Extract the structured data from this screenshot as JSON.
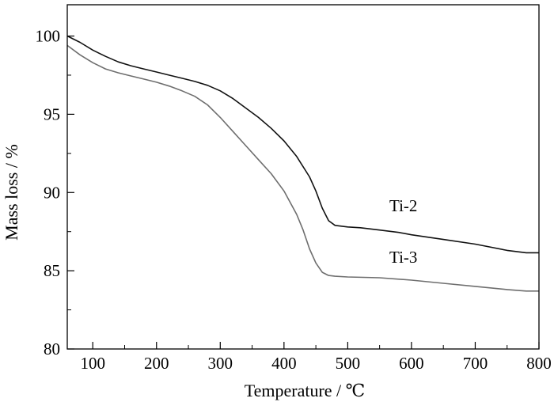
{
  "chart_data": {
    "type": "line",
    "title": "",
    "xlabel": "Temperature / ℃",
    "ylabel": "Mass loss / %",
    "xlim": [
      60,
      800
    ],
    "ylim": [
      80,
      102
    ],
    "x_ticks": [
      100,
      200,
      300,
      400,
      500,
      600,
      700,
      800
    ],
    "y_ticks": [
      80,
      85,
      90,
      95,
      100
    ],
    "grid": false,
    "legend": "inline labels",
    "series": [
      {
        "name": "Ti-2",
        "color": "#111111",
        "points": [
          [
            60,
            100.0
          ],
          [
            80,
            99.6
          ],
          [
            100,
            99.1
          ],
          [
            120,
            98.7
          ],
          [
            140,
            98.35
          ],
          [
            160,
            98.1
          ],
          [
            180,
            97.9
          ],
          [
            200,
            97.7
          ],
          [
            220,
            97.5
          ],
          [
            240,
            97.3
          ],
          [
            260,
            97.1
          ],
          [
            280,
            96.85
          ],
          [
            300,
            96.5
          ],
          [
            320,
            96.0
          ],
          [
            340,
            95.4
          ],
          [
            360,
            94.8
          ],
          [
            380,
            94.1
          ],
          [
            400,
            93.3
          ],
          [
            420,
            92.3
          ],
          [
            440,
            91.0
          ],
          [
            450,
            90.1
          ],
          [
            460,
            89.0
          ],
          [
            470,
            88.2
          ],
          [
            480,
            87.9
          ],
          [
            500,
            87.8
          ],
          [
            520,
            87.75
          ],
          [
            550,
            87.6
          ],
          [
            580,
            87.45
          ],
          [
            600,
            87.3
          ],
          [
            650,
            87.0
          ],
          [
            700,
            86.7
          ],
          [
            750,
            86.3
          ],
          [
            780,
            86.15
          ],
          [
            800,
            86.15
          ]
        ]
      },
      {
        "name": "Ti-3",
        "color": "#6e6e6e",
        "points": [
          [
            60,
            99.4
          ],
          [
            80,
            98.8
          ],
          [
            100,
            98.3
          ],
          [
            120,
            97.9
          ],
          [
            140,
            97.65
          ],
          [
            160,
            97.45
          ],
          [
            180,
            97.25
          ],
          [
            200,
            97.05
          ],
          [
            220,
            96.8
          ],
          [
            240,
            96.5
          ],
          [
            260,
            96.15
          ],
          [
            280,
            95.6
          ],
          [
            300,
            94.8
          ],
          [
            320,
            93.9
          ],
          [
            340,
            93.0
          ],
          [
            360,
            92.1
          ],
          [
            380,
            91.2
          ],
          [
            400,
            90.1
          ],
          [
            420,
            88.6
          ],
          [
            430,
            87.6
          ],
          [
            440,
            86.4
          ],
          [
            450,
            85.5
          ],
          [
            460,
            84.9
          ],
          [
            470,
            84.7
          ],
          [
            480,
            84.65
          ],
          [
            500,
            84.6
          ],
          [
            550,
            84.55
          ],
          [
            600,
            84.4
          ],
          [
            650,
            84.2
          ],
          [
            700,
            84.0
          ],
          [
            750,
            83.8
          ],
          [
            780,
            83.7
          ],
          [
            800,
            83.7
          ]
        ]
      }
    ]
  }
}
